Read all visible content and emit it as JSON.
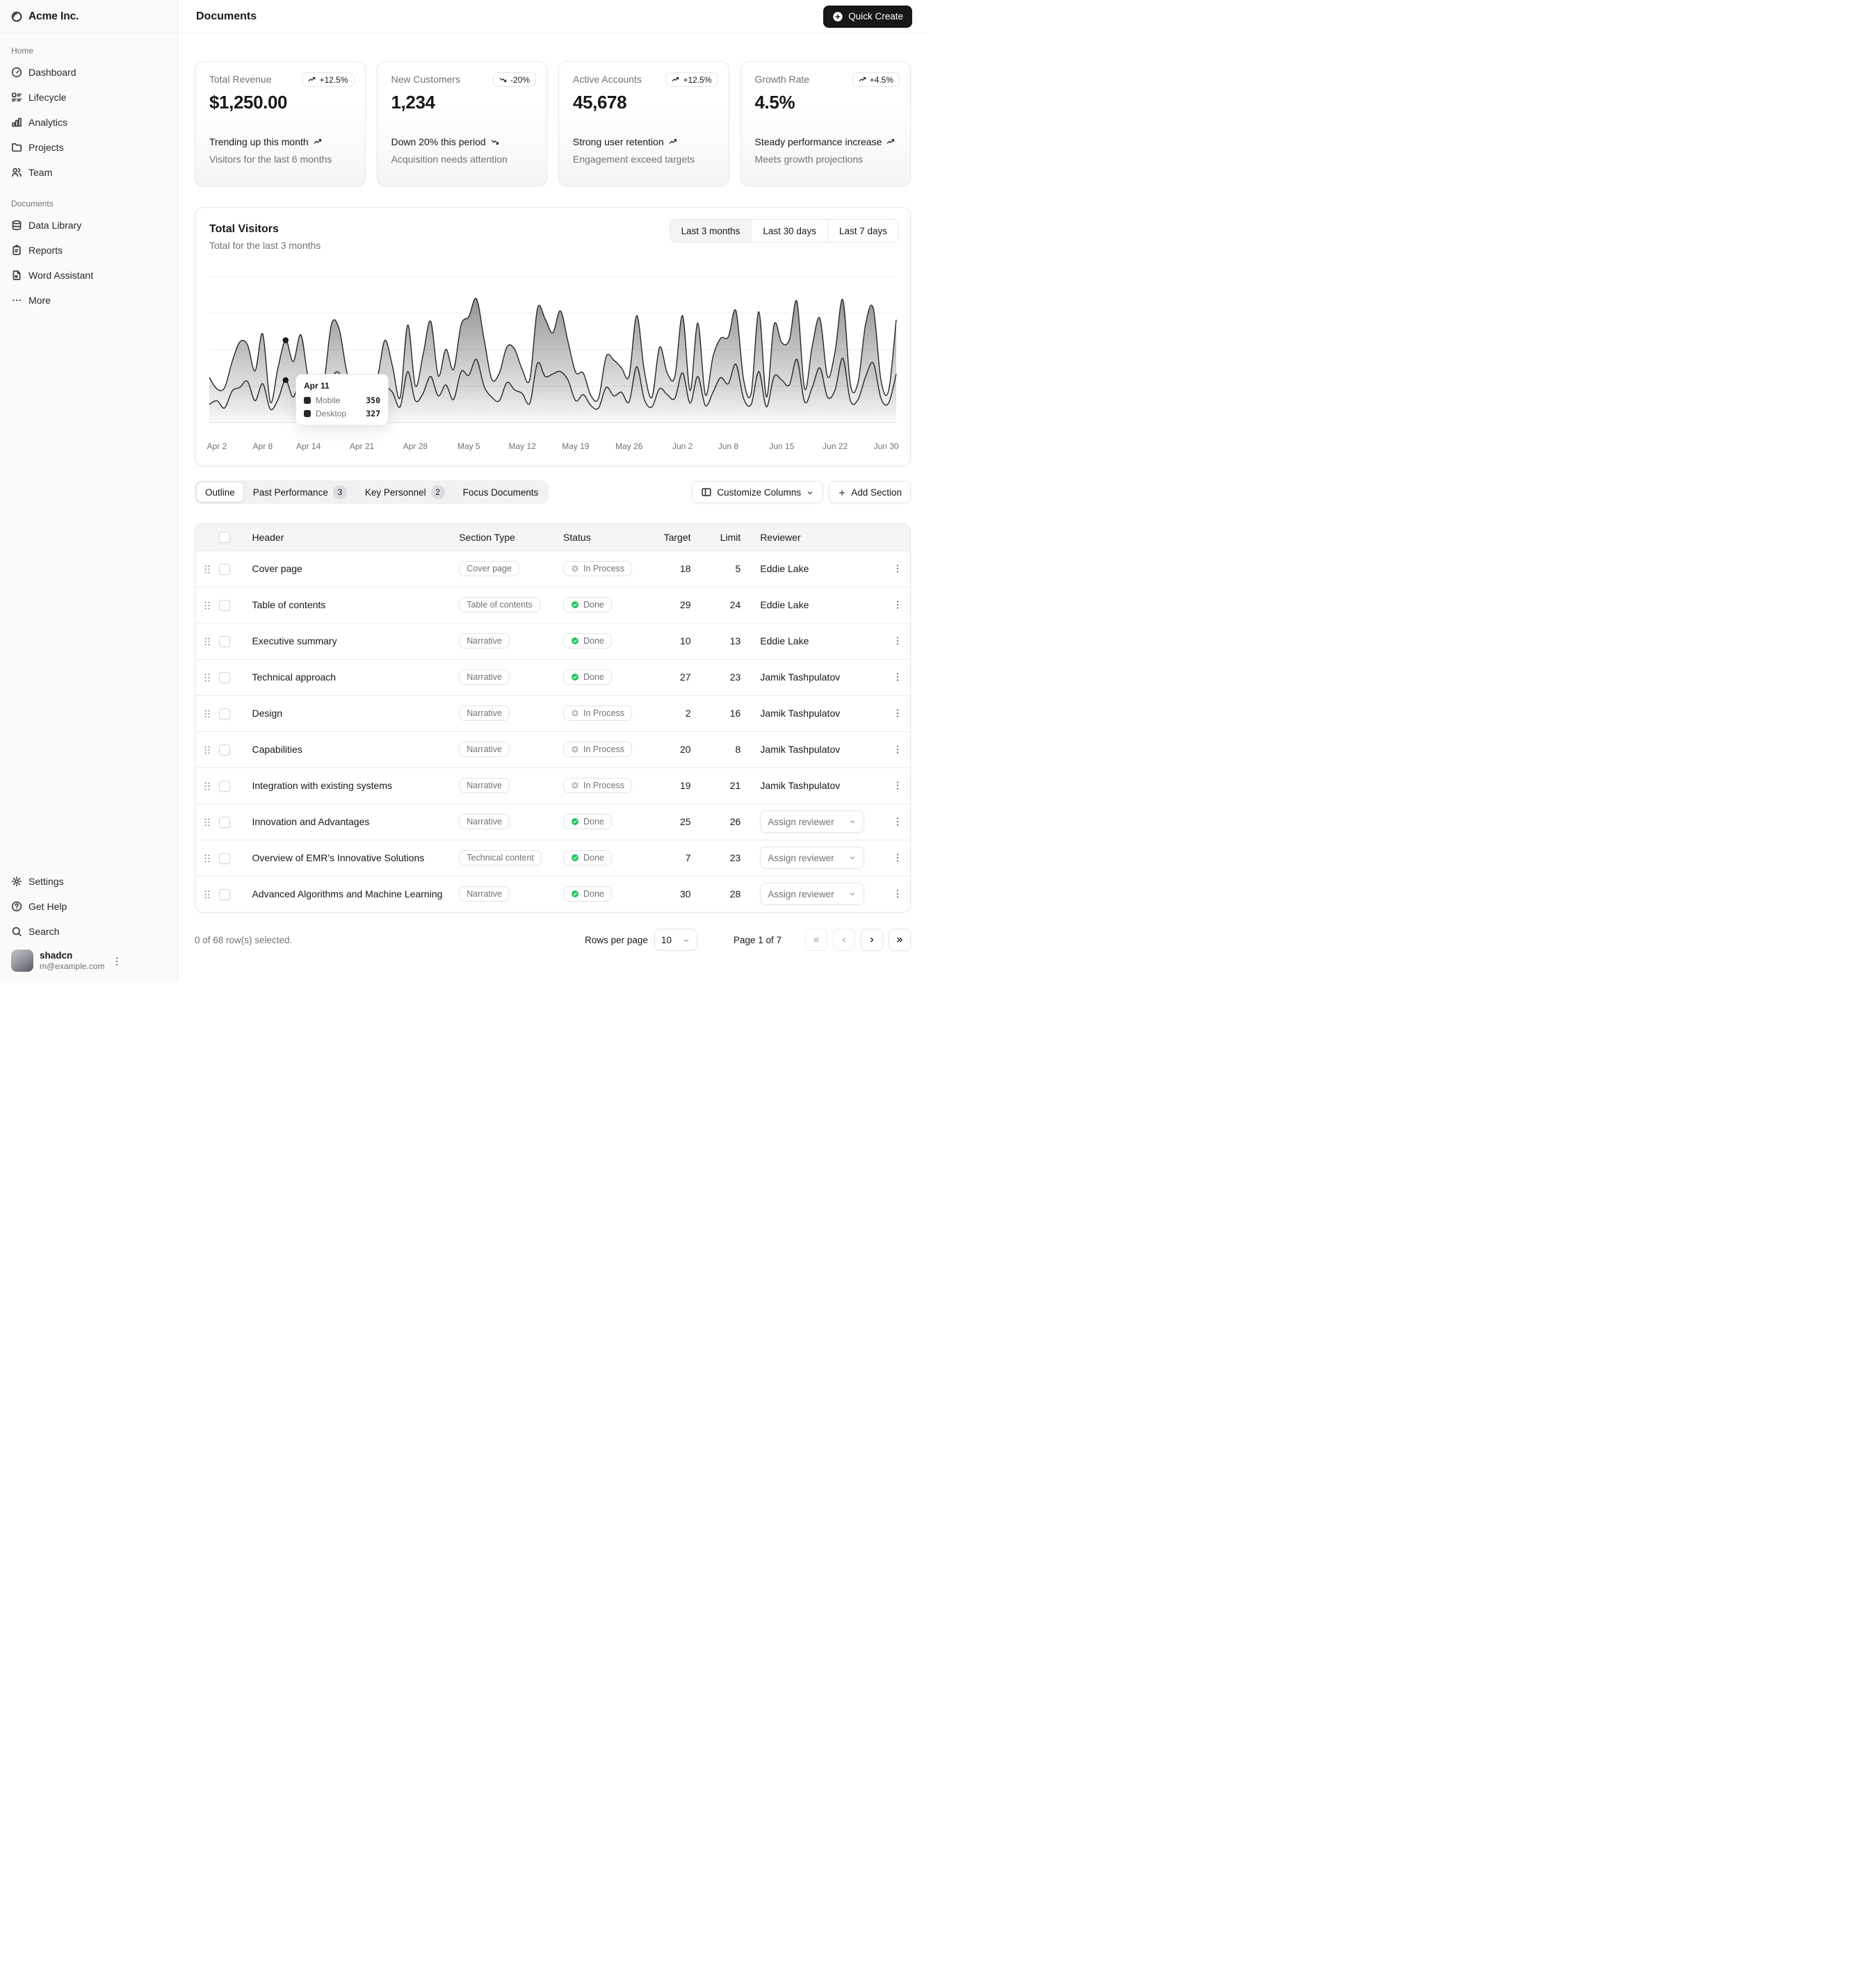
{
  "sidebar": {
    "brand": "Acme Inc.",
    "groups": [
      {
        "label": "Home",
        "items": [
          {
            "label": "Dashboard",
            "icon": "dashboard"
          },
          {
            "label": "Lifecycle",
            "icon": "list-details"
          },
          {
            "label": "Analytics",
            "icon": "chart-bar"
          },
          {
            "label": "Projects",
            "icon": "folder"
          },
          {
            "label": "Team",
            "icon": "users"
          }
        ]
      },
      {
        "label": "Documents",
        "items": [
          {
            "label": "Data Library",
            "icon": "database"
          },
          {
            "label": "Reports",
            "icon": "report"
          },
          {
            "label": "Word Assistant",
            "icon": "file-word"
          },
          {
            "label": "More",
            "icon": "more-dots"
          }
        ]
      }
    ],
    "footer_items": [
      {
        "label": "Settings",
        "icon": "gear"
      },
      {
        "label": "Get Help",
        "icon": "help-circle"
      },
      {
        "label": "Search",
        "icon": "search"
      }
    ],
    "user": {
      "name": "shadcn",
      "email": "m@example.com"
    }
  },
  "header": {
    "title": "Documents",
    "quick_create_label": "Quick Create"
  },
  "stats": [
    {
      "label": "Total Revenue",
      "value": "$1,250.00",
      "badge": "+12.5%",
      "badge_dir": "up",
      "trend": "Trending up this month",
      "trend_dir": "up",
      "sub": "Visitors for the last 6 months"
    },
    {
      "label": "New Customers",
      "value": "1,234",
      "badge": "-20%",
      "badge_dir": "down",
      "trend": "Down 20% this period",
      "trend_dir": "down",
      "sub": "Acquisition needs attention"
    },
    {
      "label": "Active Accounts",
      "value": "45,678",
      "badge": "+12.5%",
      "badge_dir": "up",
      "trend": "Strong user retention",
      "trend_dir": "up",
      "sub": "Engagement exceed targets"
    },
    {
      "label": "Growth Rate",
      "value": "4.5%",
      "badge": "+4.5%",
      "badge_dir": "up",
      "trend": "Steady performance increase",
      "trend_dir": "up",
      "sub": "Meets growth projections"
    }
  ],
  "visitors_card": {
    "title": "Total Visitors",
    "subtitle": "Total for the last 3 months",
    "ranges": [
      "Last 3 months",
      "Last 30 days",
      "Last 7 days"
    ],
    "active_range": "Last 3 months"
  },
  "chart_data": {
    "type": "area",
    "stacked": true,
    "title": "Total Visitors",
    "x_unit": "day",
    "x_range": [
      "2024-04-01",
      "2024-06-30"
    ],
    "ylim": [
      0,
      1200
    ],
    "gridline_values": [
      300,
      600,
      900,
      1200
    ],
    "legend_position": "tooltip-only",
    "series_color": "#18181b",
    "series": [
      {
        "name": "Mobile",
        "values": [
          150,
          180,
          120,
          260,
          290,
          340,
          180,
          320,
          110,
          190,
          350,
          210,
          380,
          220,
          170,
          190,
          360,
          410,
          180,
          150,
          200,
          170,
          230,
          290,
          250,
          130,
          420,
          180,
          240,
          380,
          220,
          310,
          190,
          420,
          390,
          520,
          300,
          210,
          180,
          330,
          270,
          240,
          160,
          490,
          380,
          400,
          420,
          350,
          180,
          230,
          140,
          120,
          290,
          220,
          250,
          170,
          460,
          190,
          130,
          280,
          230,
          200,
          410,
          160,
          380,
          140,
          250,
          370,
          320,
          480,
          200,
          150,
          420,
          130,
          380,
          350,
          310,
          520,
          170,
          290,
          450,
          210,
          270,
          530,
          180,
          190,
          380,
          490,
          200,
          160,
          400
        ]
      },
      {
        "name": "Desktop",
        "values": [
          222,
          97,
          167,
          242,
          373,
          301,
          245,
          409,
          59,
          261,
          327,
          292,
          342,
          137,
          120,
          138,
          446,
          364,
          243,
          89,
          137,
          224,
          138,
          387,
          215,
          75,
          383,
          122,
          315,
          454,
          165,
          293,
          247,
          385,
          481,
          498,
          388,
          149,
          227,
          293,
          335,
          197,
          197,
          448,
          473,
          338,
          499,
          315,
          235,
          177,
          82,
          81,
          252,
          294,
          201,
          213,
          420,
          233,
          78,
          340,
          178,
          178,
          470,
          103,
          439,
          88,
          294,
          323,
          385,
          438,
          155,
          92,
          492,
          81,
          426,
          307,
          371,
          475,
          107,
          341,
          408,
          169,
          317,
          480,
          132,
          141,
          434,
          448,
          149,
          103,
          446
        ]
      }
    ],
    "x_ticks": [
      {
        "label": "Apr 2",
        "index": 1
      },
      {
        "label": "Apr 8",
        "index": 7
      },
      {
        "label": "Apr 14",
        "index": 13
      },
      {
        "label": "Apr 21",
        "index": 20
      },
      {
        "label": "Apr 28",
        "index": 27
      },
      {
        "label": "May 5",
        "index": 34
      },
      {
        "label": "May 12",
        "index": 41
      },
      {
        "label": "May 19",
        "index": 48
      },
      {
        "label": "May 26",
        "index": 55
      },
      {
        "label": "Jun 2",
        "index": 62
      },
      {
        "label": "Jun 8",
        "index": 68
      },
      {
        "label": "Jun 15",
        "index": 75
      },
      {
        "label": "Jun 22",
        "index": 82
      },
      {
        "label": "Jun 30",
        "index": 90
      }
    ],
    "highlight_index": 10
  },
  "tooltip": {
    "date": "Apr 11",
    "rows": [
      {
        "label": "Mobile",
        "value": "350"
      },
      {
        "label": "Desktop",
        "value": "327"
      }
    ]
  },
  "tabs": [
    {
      "label": "Outline",
      "active": true
    },
    {
      "label": "Past Performance",
      "badge": "3"
    },
    {
      "label": "Key Personnel",
      "badge": "2"
    },
    {
      "label": "Focus Documents"
    }
  ],
  "table_actions": {
    "customize_label": "Customize Columns",
    "add_label": "Add Section"
  },
  "table": {
    "columns": [
      "Header",
      "Section Type",
      "Status",
      "Target",
      "Limit",
      "Reviewer"
    ],
    "assign_label": "Assign reviewer",
    "status_styles": {
      "done": "Done",
      "in_process": "In Process"
    },
    "rows": [
      {
        "header": "Cover page",
        "type": "Cover page",
        "status": "In Process",
        "target": "18",
        "limit": "5",
        "reviewer": "Eddie Lake"
      },
      {
        "header": "Table of contents",
        "type": "Table of contents",
        "status": "Done",
        "target": "29",
        "limit": "24",
        "reviewer": "Eddie Lake"
      },
      {
        "header": "Executive summary",
        "type": "Narrative",
        "status": "Done",
        "target": "10",
        "limit": "13",
        "reviewer": "Eddie Lake"
      },
      {
        "header": "Technical approach",
        "type": "Narrative",
        "status": "Done",
        "target": "27",
        "limit": "23",
        "reviewer": "Jamik Tashpulatov"
      },
      {
        "header": "Design",
        "type": "Narrative",
        "status": "In Process",
        "target": "2",
        "limit": "16",
        "reviewer": "Jamik Tashpulatov"
      },
      {
        "header": "Capabilities",
        "type": "Narrative",
        "status": "In Process",
        "target": "20",
        "limit": "8",
        "reviewer": "Jamik Tashpulatov"
      },
      {
        "header": "Integration with existing systems",
        "type": "Narrative",
        "status": "In Process",
        "target": "19",
        "limit": "21",
        "reviewer": "Jamik Tashpulatov"
      },
      {
        "header": "Innovation and Advantages",
        "type": "Narrative",
        "status": "Done",
        "target": "25",
        "limit": "26",
        "reviewer": null
      },
      {
        "header": "Overview of EMR's Innovative Solutions",
        "type": "Technical content",
        "status": "Done",
        "target": "7",
        "limit": "23",
        "reviewer": null
      },
      {
        "header": "Advanced Algorithms and Machine Learning",
        "type": "Narrative",
        "status": "Done",
        "target": "30",
        "limit": "28",
        "reviewer": null
      }
    ]
  },
  "footer": {
    "selection": "0 of 68 row(s) selected.",
    "rows_per_page_label": "Rows per page",
    "rows_per_page": "10",
    "page_info": "Page 1 of 7",
    "pagination": [
      {
        "icon": "chevrons-left",
        "name": "first-page-button",
        "disabled": true
      },
      {
        "icon": "chevron-left",
        "name": "previous-page-button",
        "disabled": true
      },
      {
        "icon": "chevron-right",
        "name": "next-page-button",
        "disabled": false
      },
      {
        "icon": "chevrons-right",
        "name": "last-page-button",
        "disabled": false
      }
    ]
  },
  "colors": {
    "primary": "#171717",
    "muted_text": "#71717a",
    "border": "#e5e5e5",
    "green": "#22c55e",
    "sidebar_bg": "#fafafa"
  }
}
